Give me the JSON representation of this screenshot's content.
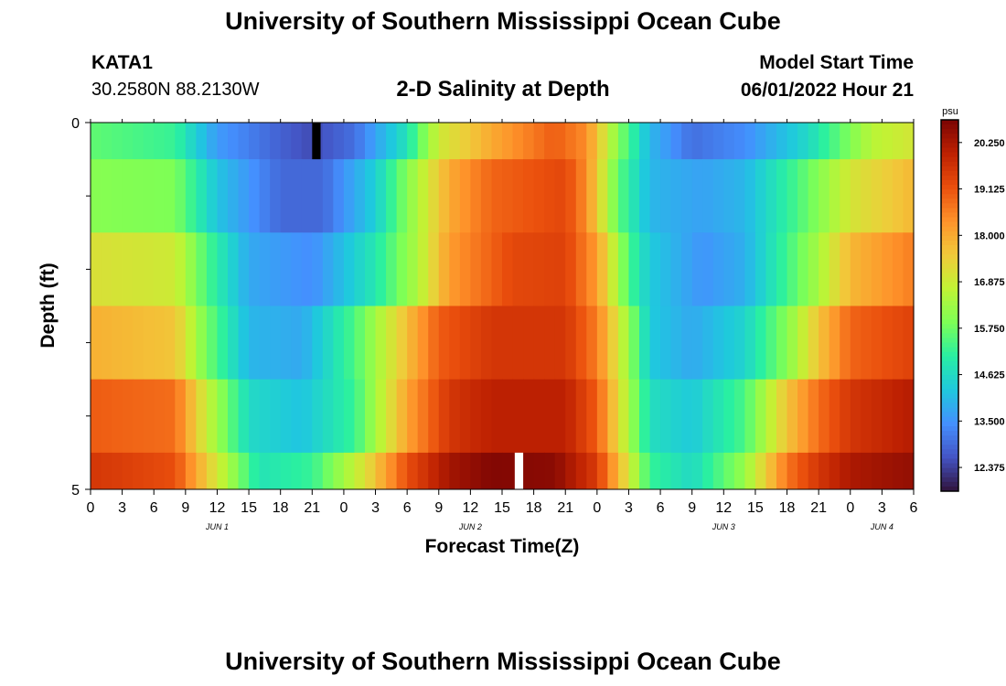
{
  "header": {
    "title": "University of Southern Mississippi Ocean Cube",
    "station_id": "KATA1",
    "station_coords": "30.2580N  88.2130W",
    "plot_title": "2-D Salinity at Depth",
    "model_start_label": "Model Start Time",
    "model_start_value": "06/01/2022 Hour 21"
  },
  "footer": {
    "title": "University of Southern Mississippi Ocean Cube"
  },
  "colors": {
    "background": "#ffffff",
    "colormap": [
      "#30123b",
      "#4454c4",
      "#4490fe",
      "#1fc8de",
      "#29efa2",
      "#7dff56",
      "#c1f334",
      "#f1ca3a",
      "#fe922a",
      "#ea4f0d",
      "#be2102",
      "#7a0403"
    ],
    "missing_top": "#000000",
    "missing_bottom": "#ffffff"
  },
  "chart_data": {
    "type": "heatmap",
    "title": "2-D Salinity at Depth",
    "xlabel": "Forecast Time(Z)",
    "ylabel": "Depth (ft)",
    "x_ticks": [
      "0",
      "3",
      "6",
      "9",
      "12",
      "15",
      "18",
      "21",
      "0",
      "3",
      "6",
      "9",
      "12",
      "15",
      "18",
      "21",
      "0",
      "3",
      "6",
      "9",
      "12",
      "15",
      "18",
      "21",
      "0",
      "3",
      "6"
    ],
    "x_hours": [
      0,
      78
    ],
    "date_labels": [
      {
        "label": "JUN 1",
        "hour": 12
      },
      {
        "label": "JUN 2",
        "hour": 36
      },
      {
        "label": "JUN 3",
        "hour": 60
      },
      {
        "label": "JUN 4",
        "hour": 75
      }
    ],
    "y_range": [
      0,
      5
    ],
    "y_tick_labels": [
      "0",
      "5"
    ],
    "y_minor_ticks": [
      1,
      2,
      3,
      4
    ],
    "depth_bands": [
      0,
      0.5,
      1.5,
      2.5,
      3.5,
      4.5,
      5
    ],
    "colorbar": {
      "unit": "psu",
      "min": 11.8,
      "max": 20.8,
      "tick_values": [
        20.25,
        19.125,
        18.0,
        16.875,
        15.75,
        14.625,
        13.5,
        12.375
      ],
      "tick_labels": [
        "20.250",
        "19.125",
        "18.000",
        "16.875",
        "15.750",
        "14.625",
        "13.500",
        "12.375"
      ]
    },
    "salinity_keyframes": [
      {
        "depth": "0",
        "points": [
          [
            0,
            15.6
          ],
          [
            8,
            15.2
          ],
          [
            12,
            13.6
          ],
          [
            18,
            12.8
          ],
          [
            21,
            12.5
          ],
          [
            25,
            13.0
          ],
          [
            30,
            14.8
          ],
          [
            33,
            16.9
          ],
          [
            38,
            18.0
          ],
          [
            44,
            19.0
          ],
          [
            47,
            18.4
          ],
          [
            50,
            16.0
          ],
          [
            53,
            14.0
          ],
          [
            57,
            13.0
          ],
          [
            62,
            13.4
          ],
          [
            68,
            14.6
          ],
          [
            71,
            15.6
          ],
          [
            74,
            16.6
          ],
          [
            78,
            17.0
          ]
        ]
      },
      {
        "depth": "1",
        "points": [
          [
            0,
            16.0
          ],
          [
            8,
            15.9
          ],
          [
            12,
            14.2
          ],
          [
            18,
            12.9
          ],
          [
            22,
            12.9
          ],
          [
            27,
            14.4
          ],
          [
            31,
            16.5
          ],
          [
            34,
            18.0
          ],
          [
            38,
            18.9
          ],
          [
            45,
            19.3
          ],
          [
            47,
            18.4
          ],
          [
            50,
            15.6
          ],
          [
            53,
            14.0
          ],
          [
            58,
            13.7
          ],
          [
            62,
            14.0
          ],
          [
            66,
            15.1
          ],
          [
            69,
            16.0
          ],
          [
            72,
            17.0
          ],
          [
            78,
            17.8
          ]
        ]
      },
      {
        "depth": "2",
        "points": [
          [
            0,
            17.1
          ],
          [
            8,
            16.9
          ],
          [
            11,
            15.4
          ],
          [
            15,
            13.8
          ],
          [
            21,
            13.4
          ],
          [
            27,
            14.9
          ],
          [
            31,
            16.5
          ],
          [
            34,
            18.2
          ],
          [
            40,
            19.3
          ],
          [
            45,
            19.4
          ],
          [
            48,
            18.2
          ],
          [
            51,
            15.4
          ],
          [
            53,
            14.3
          ],
          [
            58,
            13.5
          ],
          [
            62,
            13.9
          ],
          [
            66,
            15.3
          ],
          [
            69,
            16.4
          ],
          [
            72,
            17.8
          ],
          [
            78,
            18.6
          ]
        ]
      },
      {
        "depth": "3",
        "points": [
          [
            0,
            17.9
          ],
          [
            8,
            17.6
          ],
          [
            11,
            15.8
          ],
          [
            15,
            14.0
          ],
          [
            20,
            13.8
          ],
          [
            25,
            15.4
          ],
          [
            30,
            17.7
          ],
          [
            33,
            19.0
          ],
          [
            38,
            19.6
          ],
          [
            45,
            19.6
          ],
          [
            48,
            18.6
          ],
          [
            51,
            16.2
          ],
          [
            53,
            14.3
          ],
          [
            57,
            13.8
          ],
          [
            62,
            14.5
          ],
          [
            66,
            16.0
          ],
          [
            69,
            17.6
          ],
          [
            72,
            18.9
          ],
          [
            78,
            19.4
          ]
        ]
      },
      {
        "depth": "4",
        "points": [
          [
            0,
            19.0
          ],
          [
            8,
            18.8
          ],
          [
            11,
            16.8
          ],
          [
            15,
            14.6
          ],
          [
            20,
            14.2
          ],
          [
            25,
            15.2
          ],
          [
            30,
            18.1
          ],
          [
            34,
            19.6
          ],
          [
            38,
            20.0
          ],
          [
            45,
            20.0
          ],
          [
            48,
            19.0
          ],
          [
            51,
            16.4
          ],
          [
            53,
            14.7
          ],
          [
            57,
            14.3
          ],
          [
            62,
            15.4
          ],
          [
            66,
            17.6
          ],
          [
            69,
            18.8
          ],
          [
            72,
            19.6
          ],
          [
            78,
            20.1
          ]
        ]
      },
      {
        "depth": "5",
        "points": [
          [
            0,
            19.6
          ],
          [
            8,
            19.2
          ],
          [
            11,
            17.5
          ],
          [
            16,
            14.8
          ],
          [
            21,
            15.2
          ],
          [
            26,
            17.1
          ],
          [
            30,
            19.2
          ],
          [
            34,
            20.3
          ],
          [
            38,
            20.7
          ],
          [
            44,
            20.6
          ],
          [
            48,
            19.5
          ],
          [
            51,
            17.0
          ],
          [
            53,
            15.2
          ],
          [
            57,
            14.6
          ],
          [
            62,
            16.2
          ],
          [
            66,
            18.7
          ],
          [
            69,
            19.6
          ],
          [
            72,
            20.2
          ],
          [
            78,
            20.5
          ]
        ]
      }
    ],
    "missing_cells": [
      {
        "band": 0,
        "hour_start": 21,
        "hour_end": 21.8,
        "color_key": "missing_top"
      },
      {
        "band": 5,
        "hour_start": 40.2,
        "hour_end": 41,
        "color_key": "missing_bottom"
      }
    ]
  }
}
